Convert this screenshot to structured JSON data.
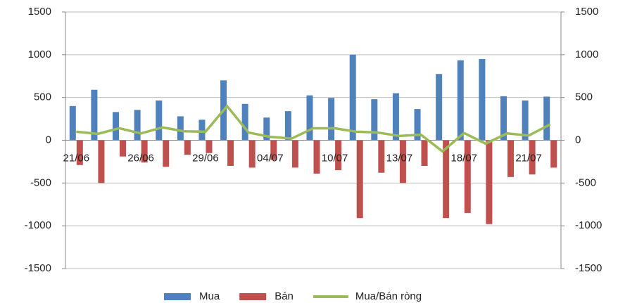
{
  "chart_data": {
    "type": "bar",
    "categories": [
      "21/06",
      null,
      null,
      "26/06",
      null,
      null,
      "29/06",
      null,
      null,
      "04/07",
      null,
      null,
      "10/07",
      null,
      null,
      "13/07",
      null,
      null,
      "18/07",
      null,
      null,
      "21/07",
      null
    ],
    "series": [
      {
        "name": "Mua",
        "color": "#4f81bd",
        "values": [
          400,
          590,
          330,
          355,
          465,
          280,
          240,
          700,
          425,
          265,
          340,
          525,
          495,
          1000,
          480,
          550,
          365,
          775,
          935,
          950,
          515,
          465,
          510
        ]
      },
      {
        "name": "Bán",
        "color": "#c0504d",
        "values": [
          -290,
          -500,
          -190,
          -260,
          -310,
          -170,
          -150,
          -300,
          -320,
          -230,
          -320,
          -390,
          -350,
          -910,
          -380,
          -500,
          -300,
          -910,
          -850,
          -980,
          -430,
          -400,
          -320
        ]
      },
      {
        "name": "Mua/Bán ròng",
        "color": "#9bbb59",
        "type": "line",
        "axis": "y2",
        "values": [
          100,
          75,
          140,
          80,
          150,
          105,
          100,
          400,
          90,
          40,
          20,
          140,
          140,
          100,
          90,
          50,
          65,
          -130,
          85,
          -40,
          80,
          55,
          185
        ]
      }
    ],
    "ylim": [
      -1500,
      1500
    ],
    "yticks": [
      -1500,
      -1000,
      -500,
      0,
      500,
      1000,
      1500
    ],
    "y2lim": [
      -1500,
      1500
    ],
    "y2ticks": [
      -1500,
      -1000,
      -500,
      0,
      500,
      1000,
      1500
    ],
    "grid": true,
    "legend": "bottom"
  }
}
